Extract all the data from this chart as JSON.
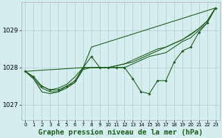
{
  "background_color": "#d4eef0",
  "grid_color": "#b0cccc",
  "line_color": "#1a5c1a",
  "marker_color": "#1a5c1a",
  "title": "Graphe pression niveau de la mer (hPa)",
  "title_fontsize": 7.5,
  "xlim": [
    -0.5,
    23.5
  ],
  "ylim": [
    1026.6,
    1029.75
  ],
  "yticks": [
    1027,
    1028,
    1029
  ],
  "xticks": [
    0,
    1,
    2,
    3,
    4,
    5,
    6,
    7,
    8,
    9,
    10,
    11,
    12,
    13,
    14,
    15,
    16,
    17,
    18,
    19,
    20,
    21,
    22,
    23
  ],
  "line1": [
    1027.9,
    1027.7,
    1027.35,
    1027.3,
    1027.35,
    1027.5,
    1027.6,
    1027.95,
    1028.0,
    1028.0,
    1028.0,
    1028.05,
    1028.1,
    1028.15,
    1028.25,
    1028.35,
    1028.45,
    1028.55,
    1028.65,
    1028.75,
    1028.9,
    1029.05,
    1029.25,
    1029.6
  ],
  "line2": [
    1027.9,
    1027.75,
    1027.5,
    1027.4,
    1027.45,
    1027.55,
    1027.75,
    1028.0,
    1028.0,
    1028.0,
    1028.0,
    1028.05,
    1028.1,
    1028.2,
    1028.3,
    1028.4,
    1028.5,
    1028.55,
    1028.65,
    1028.75,
    1028.88,
    1029.05,
    1029.25,
    1029.6
  ],
  "line3": [
    1027.9,
    1027.75,
    1027.5,
    1027.4,
    1027.4,
    1027.5,
    1027.65,
    1028.0,
    1028.3,
    1028.0,
    1028.0,
    1028.0,
    1028.0,
    1027.7,
    1027.35,
    1027.3,
    1027.65,
    1027.65,
    1028.15,
    1028.45,
    1028.55,
    1028.95,
    1029.2,
    1029.6
  ],
  "line4": [
    1027.9,
    1027.7,
    1027.45,
    1027.35,
    1027.35,
    1027.45,
    1027.6,
    1028.0,
    1028.0,
    1028.0,
    1028.0,
    1028.0,
    1028.0,
    1028.1,
    1028.2,
    1028.3,
    1028.35,
    1028.4,
    1028.55,
    1028.7,
    1028.8,
    1029.0,
    1029.2,
    1029.6
  ],
  "line5_x": [
    0,
    7,
    8,
    23
  ],
  "line5_y": [
    1027.9,
    1028.0,
    1028.55,
    1029.6
  ]
}
